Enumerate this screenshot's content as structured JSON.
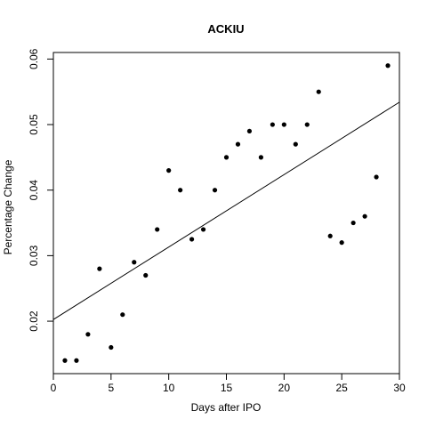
{
  "chart_data": {
    "type": "scatter",
    "title": "ACKIU",
    "xlabel": "Days after IPO",
    "ylabel": "Percentage Change",
    "xlim": [
      0,
      30
    ],
    "ylim": [
      0.012,
      0.061
    ],
    "x_ticks": [
      0,
      5,
      10,
      15,
      20,
      25,
      30
    ],
    "y_ticks": [
      0.02,
      0.03,
      0.04,
      0.05,
      0.06
    ],
    "x_tick_labels": [
      "0",
      "5",
      "10",
      "15",
      "20",
      "25",
      "30"
    ],
    "y_tick_labels": [
      "0.02",
      "0.03",
      "0.04",
      "0.05",
      "0.06"
    ],
    "points": [
      {
        "x": 1,
        "y": 0.014
      },
      {
        "x": 2,
        "y": 0.014
      },
      {
        "x": 3,
        "y": 0.018
      },
      {
        "x": 4,
        "y": 0.028
      },
      {
        "x": 5,
        "y": 0.016
      },
      {
        "x": 6,
        "y": 0.021
      },
      {
        "x": 7,
        "y": 0.029
      },
      {
        "x": 8,
        "y": 0.027
      },
      {
        "x": 9,
        "y": 0.034
      },
      {
        "x": 10,
        "y": 0.043
      },
      {
        "x": 11,
        "y": 0.04
      },
      {
        "x": 12,
        "y": 0.0325
      },
      {
        "x": 13,
        "y": 0.034
      },
      {
        "x": 14,
        "y": 0.04
      },
      {
        "x": 15,
        "y": 0.045
      },
      {
        "x": 16,
        "y": 0.047
      },
      {
        "x": 17,
        "y": 0.049
      },
      {
        "x": 18,
        "y": 0.045
      },
      {
        "x": 19,
        "y": 0.05
      },
      {
        "x": 20,
        "y": 0.05
      },
      {
        "x": 21,
        "y": 0.047
      },
      {
        "x": 22,
        "y": 0.05
      },
      {
        "x": 23,
        "y": 0.055
      },
      {
        "x": 24,
        "y": 0.033
      },
      {
        "x": 25,
        "y": 0.032
      },
      {
        "x": 26,
        "y": 0.035
      },
      {
        "x": 27,
        "y": 0.036
      },
      {
        "x": 28,
        "y": 0.042
      },
      {
        "x": 29,
        "y": 0.059
      }
    ],
    "trend_line": {
      "intercept": 0.0208,
      "slope": 0.00108
    },
    "grid": false,
    "legend": "none"
  }
}
